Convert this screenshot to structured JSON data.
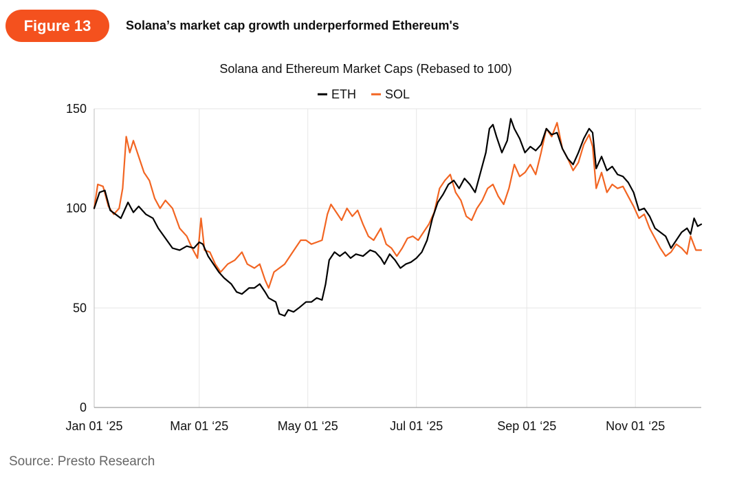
{
  "header": {
    "figure_label": "Figure 13",
    "title": "Solana’s market cap growth underperformed Ethereum's"
  },
  "source": "Source: Presto Research",
  "chart_data": {
    "type": "line",
    "title": "Solana and Ethereum Market Caps (Rebased to 100)",
    "xlabel": "",
    "ylabel": "",
    "ylim": [
      0,
      150
    ],
    "yticks": [
      0,
      50,
      100,
      150
    ],
    "xticks": [
      "Jan 01 ‘25",
      "Mar 01 ‘25",
      "May 01 ‘25",
      "Jul 01 ‘25",
      "Sep 01 ‘25",
      "Nov 01 ‘25"
    ],
    "x_start": "2025-01-01",
    "x_end": "2025-12-08",
    "grid": true,
    "legend_position": "top-center",
    "series": [
      {
        "name": "ETH",
        "color": "#000000",
        "points": [
          [
            "2025-01-01",
            100
          ],
          [
            "2025-01-04",
            108
          ],
          [
            "2025-01-07",
            109
          ],
          [
            "2025-01-10",
            99
          ],
          [
            "2025-01-13",
            97
          ],
          [
            "2025-01-16",
            95
          ],
          [
            "2025-01-20",
            103
          ],
          [
            "2025-01-23",
            98
          ],
          [
            "2025-01-26",
            101
          ],
          [
            "2025-01-30",
            97
          ],
          [
            "2025-02-03",
            95
          ],
          [
            "2025-02-06",
            90
          ],
          [
            "2025-02-10",
            85
          ],
          [
            "2025-02-14",
            80
          ],
          [
            "2025-02-18",
            79
          ],
          [
            "2025-02-22",
            81
          ],
          [
            "2025-02-26",
            80
          ],
          [
            "2025-03-01",
            83
          ],
          [
            "2025-03-03",
            82
          ],
          [
            "2025-03-06",
            76
          ],
          [
            "2025-03-09",
            72
          ],
          [
            "2025-03-12",
            68
          ],
          [
            "2025-03-15",
            65
          ],
          [
            "2025-03-19",
            62
          ],
          [
            "2025-03-22",
            58
          ],
          [
            "2025-03-25",
            57
          ],
          [
            "2025-03-29",
            60
          ],
          [
            "2025-04-01",
            60
          ],
          [
            "2025-04-04",
            62
          ],
          [
            "2025-04-07",
            58
          ],
          [
            "2025-04-09",
            55
          ],
          [
            "2025-04-13",
            53
          ],
          [
            "2025-04-15",
            47
          ],
          [
            "2025-04-18",
            46
          ],
          [
            "2025-04-20",
            49
          ],
          [
            "2025-04-23",
            48
          ],
          [
            "2025-04-26",
            50
          ],
          [
            "2025-04-30",
            53
          ],
          [
            "2025-05-03",
            53
          ],
          [
            "2025-05-06",
            55
          ],
          [
            "2025-05-09",
            54
          ],
          [
            "2025-05-11",
            62
          ],
          [
            "2025-05-13",
            74
          ],
          [
            "2025-05-16",
            78
          ],
          [
            "2025-05-19",
            76
          ],
          [
            "2025-05-22",
            78
          ],
          [
            "2025-05-25",
            75
          ],
          [
            "2025-05-28",
            77
          ],
          [
            "2025-06-01",
            76
          ],
          [
            "2025-06-05",
            79
          ],
          [
            "2025-06-08",
            78
          ],
          [
            "2025-06-11",
            75
          ],
          [
            "2025-06-13",
            72
          ],
          [
            "2025-06-16",
            77
          ],
          [
            "2025-06-19",
            74
          ],
          [
            "2025-06-22",
            70
          ],
          [
            "2025-06-25",
            72
          ],
          [
            "2025-06-28",
            73
          ],
          [
            "2025-07-01",
            75
          ],
          [
            "2025-07-04",
            78
          ],
          [
            "2025-07-07",
            84
          ],
          [
            "2025-07-10",
            95
          ],
          [
            "2025-07-13",
            103
          ],
          [
            "2025-07-16",
            107
          ],
          [
            "2025-07-19",
            112
          ],
          [
            "2025-07-22",
            114
          ],
          [
            "2025-07-25",
            110
          ],
          [
            "2025-07-28",
            115
          ],
          [
            "2025-07-31",
            112
          ],
          [
            "2025-08-03",
            108
          ],
          [
            "2025-08-06",
            118
          ],
          [
            "2025-08-09",
            128
          ],
          [
            "2025-08-11",
            140
          ],
          [
            "2025-08-13",
            142
          ],
          [
            "2025-08-15",
            136
          ],
          [
            "2025-08-18",
            128
          ],
          [
            "2025-08-21",
            134
          ],
          [
            "2025-08-23",
            145
          ],
          [
            "2025-08-25",
            140
          ],
          [
            "2025-08-28",
            135
          ],
          [
            "2025-08-31",
            128
          ],
          [
            "2025-09-03",
            131
          ],
          [
            "2025-09-06",
            129
          ],
          [
            "2025-09-09",
            132
          ],
          [
            "2025-09-12",
            140
          ],
          [
            "2025-09-15",
            137
          ],
          [
            "2025-09-18",
            138
          ],
          [
            "2025-09-21",
            130
          ],
          [
            "2025-09-24",
            125
          ],
          [
            "2025-09-27",
            122
          ],
          [
            "2025-09-30",
            128
          ],
          [
            "2025-10-03",
            135
          ],
          [
            "2025-10-06",
            140
          ],
          [
            "2025-10-08",
            138
          ],
          [
            "2025-10-10",
            120
          ],
          [
            "2025-10-13",
            126
          ],
          [
            "2025-10-16",
            119
          ],
          [
            "2025-10-19",
            121
          ],
          [
            "2025-10-22",
            117
          ],
          [
            "2025-10-25",
            116
          ],
          [
            "2025-10-28",
            113
          ],
          [
            "2025-10-31",
            108
          ],
          [
            "2025-11-03",
            99
          ],
          [
            "2025-11-06",
            100
          ],
          [
            "2025-11-09",
            96
          ],
          [
            "2025-11-12",
            90
          ],
          [
            "2025-11-15",
            88
          ],
          [
            "2025-11-18",
            86
          ],
          [
            "2025-11-21",
            80
          ],
          [
            "2025-11-24",
            84
          ],
          [
            "2025-11-27",
            88
          ],
          [
            "2025-11-30",
            90
          ],
          [
            "2025-12-02",
            87
          ],
          [
            "2025-12-04",
            95
          ],
          [
            "2025-12-06",
            91
          ],
          [
            "2025-12-08",
            92
          ]
        ]
      },
      {
        "name": "SOL",
        "color": "#f26522",
        "points": [
          [
            "2025-01-01",
            100
          ],
          [
            "2025-01-03",
            112
          ],
          [
            "2025-01-06",
            111
          ],
          [
            "2025-01-09",
            101
          ],
          [
            "2025-01-12",
            97
          ],
          [
            "2025-01-15",
            100
          ],
          [
            "2025-01-17",
            110
          ],
          [
            "2025-01-19",
            136
          ],
          [
            "2025-01-21",
            128
          ],
          [
            "2025-01-23",
            134
          ],
          [
            "2025-01-26",
            126
          ],
          [
            "2025-01-29",
            118
          ],
          [
            "2025-02-01",
            114
          ],
          [
            "2025-02-04",
            105
          ],
          [
            "2025-02-07",
            100
          ],
          [
            "2025-02-10",
            104
          ],
          [
            "2025-02-14",
            100
          ],
          [
            "2025-02-18",
            90
          ],
          [
            "2025-02-22",
            86
          ],
          [
            "2025-02-25",
            80
          ],
          [
            "2025-02-28",
            75
          ],
          [
            "2025-03-02",
            95
          ],
          [
            "2025-03-04",
            79
          ],
          [
            "2025-03-07",
            78
          ],
          [
            "2025-03-10",
            72
          ],
          [
            "2025-03-13",
            68
          ],
          [
            "2025-03-17",
            72
          ],
          [
            "2025-03-21",
            74
          ],
          [
            "2025-03-25",
            78
          ],
          [
            "2025-03-28",
            72
          ],
          [
            "2025-04-01",
            70
          ],
          [
            "2025-04-04",
            72
          ],
          [
            "2025-04-07",
            64
          ],
          [
            "2025-04-09",
            60
          ],
          [
            "2025-04-12",
            68
          ],
          [
            "2025-04-15",
            70
          ],
          [
            "2025-04-18",
            72
          ],
          [
            "2025-04-21",
            76
          ],
          [
            "2025-04-24",
            80
          ],
          [
            "2025-04-27",
            84
          ],
          [
            "2025-04-30",
            84
          ],
          [
            "2025-05-03",
            82
          ],
          [
            "2025-05-06",
            83
          ],
          [
            "2025-05-09",
            84
          ],
          [
            "2025-05-12",
            97
          ],
          [
            "2025-05-14",
            102
          ],
          [
            "2025-05-17",
            98
          ],
          [
            "2025-05-20",
            94
          ],
          [
            "2025-05-23",
            100
          ],
          [
            "2025-05-26",
            96
          ],
          [
            "2025-05-29",
            99
          ],
          [
            "2025-06-01",
            92
          ],
          [
            "2025-06-04",
            86
          ],
          [
            "2025-06-07",
            84
          ],
          [
            "2025-06-11",
            90
          ],
          [
            "2025-06-14",
            82
          ],
          [
            "2025-06-17",
            80
          ],
          [
            "2025-06-20",
            76
          ],
          [
            "2025-06-23",
            80
          ],
          [
            "2025-06-26",
            85
          ],
          [
            "2025-06-29",
            86
          ],
          [
            "2025-07-02",
            84
          ],
          [
            "2025-07-05",
            88
          ],
          [
            "2025-07-08",
            92
          ],
          [
            "2025-07-11",
            98
          ],
          [
            "2025-07-14",
            110
          ],
          [
            "2025-07-17",
            114
          ],
          [
            "2025-07-20",
            117
          ],
          [
            "2025-07-23",
            108
          ],
          [
            "2025-07-26",
            104
          ],
          [
            "2025-07-29",
            96
          ],
          [
            "2025-08-01",
            94
          ],
          [
            "2025-08-04",
            100
          ],
          [
            "2025-08-07",
            104
          ],
          [
            "2025-08-10",
            110
          ],
          [
            "2025-08-13",
            112
          ],
          [
            "2025-08-16",
            106
          ],
          [
            "2025-08-19",
            102
          ],
          [
            "2025-08-22",
            110
          ],
          [
            "2025-08-25",
            122
          ],
          [
            "2025-08-28",
            116
          ],
          [
            "2025-08-31",
            118
          ],
          [
            "2025-09-03",
            122
          ],
          [
            "2025-09-06",
            117
          ],
          [
            "2025-09-09",
            128
          ],
          [
            "2025-09-12",
            140
          ],
          [
            "2025-09-15",
            136
          ],
          [
            "2025-09-18",
            143
          ],
          [
            "2025-09-21",
            130
          ],
          [
            "2025-09-24",
            125
          ],
          [
            "2025-09-27",
            119
          ],
          [
            "2025-09-30",
            123
          ],
          [
            "2025-10-03",
            132
          ],
          [
            "2025-10-06",
            137
          ],
          [
            "2025-10-08",
            131
          ],
          [
            "2025-10-10",
            110
          ],
          [
            "2025-10-13",
            118
          ],
          [
            "2025-10-16",
            108
          ],
          [
            "2025-10-19",
            112
          ],
          [
            "2025-10-22",
            110
          ],
          [
            "2025-10-25",
            111
          ],
          [
            "2025-10-28",
            106
          ],
          [
            "2025-10-31",
            101
          ],
          [
            "2025-11-03",
            95
          ],
          [
            "2025-11-06",
            97
          ],
          [
            "2025-11-09",
            90
          ],
          [
            "2025-11-12",
            85
          ],
          [
            "2025-11-15",
            80
          ],
          [
            "2025-11-18",
            76
          ],
          [
            "2025-11-21",
            78
          ],
          [
            "2025-11-24",
            82
          ],
          [
            "2025-11-27",
            80
          ],
          [
            "2025-11-30",
            77
          ],
          [
            "2025-12-02",
            86
          ],
          [
            "2025-12-05",
            79
          ],
          [
            "2025-12-08",
            79
          ]
        ]
      }
    ]
  }
}
